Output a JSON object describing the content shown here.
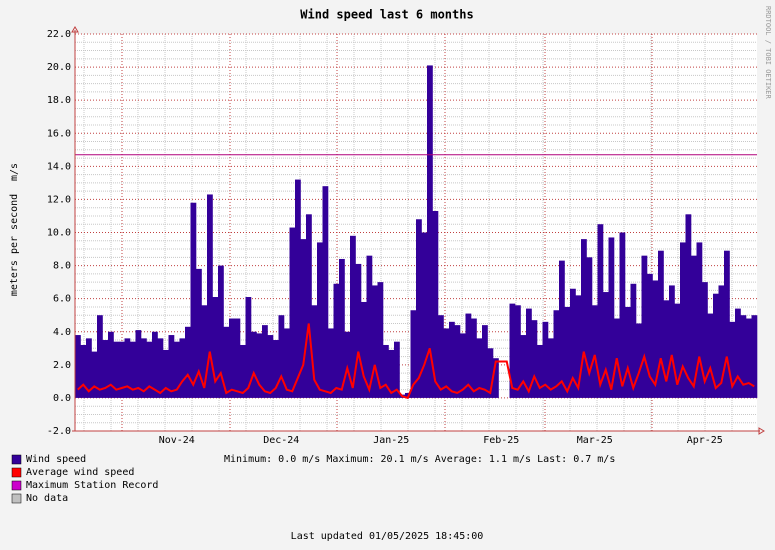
{
  "chart_data": {
    "type": "bar",
    "title": "Wind speed last 6 months",
    "y_label": "meters per second",
    "y_unit": "m/s",
    "watermark": "RRDTOOL / TOBI OETIKER",
    "stats": "Minimum: 0.0 m/s  Maximum: 20.1 m/s  Average: 1.1 m/s  Last: 0.7 m/s",
    "footer": "Last updated 01/05/2025 18:45:00",
    "ylim": [
      -2,
      22
    ],
    "yticks": [
      {
        "value": -2,
        "label": "-2.0"
      },
      {
        "value": 0,
        "label": "0.0"
      },
      {
        "value": 2,
        "label": "2.0"
      },
      {
        "value": 4,
        "label": "4.0"
      },
      {
        "value": 6,
        "label": "6.0"
      },
      {
        "value": 8,
        "label": "8.0"
      },
      {
        "value": 10,
        "label": "10.0"
      },
      {
        "value": 12,
        "label": "12.0"
      },
      {
        "value": 14,
        "label": "14.0"
      },
      {
        "value": 16,
        "label": "16.0"
      },
      {
        "value": 18,
        "label": "18.0"
      },
      {
        "value": 20,
        "label": "20.0"
      },
      {
        "value": 22,
        "label": "22.0"
      }
    ],
    "grid": true,
    "categories": [
      null,
      null,
      null,
      null,
      null,
      null,
      null,
      null,
      null,
      null,
      null,
      null,
      null,
      null,
      null,
      null,
      null,
      null,
      "Nov-24",
      null,
      null,
      null,
      null,
      null,
      null,
      null,
      null,
      null,
      null,
      null,
      null,
      null,
      null,
      null,
      null,
      null,
      null,
      "Dec-24",
      null,
      null,
      null,
      null,
      null,
      null,
      null,
      null,
      null,
      null,
      null,
      null,
      null,
      null,
      null,
      null,
      null,
      null,
      null,
      "Jan-25",
      null,
      null,
      null,
      null,
      null,
      null,
      null,
      null,
      null,
      null,
      null,
      null,
      null,
      null,
      null,
      null,
      null,
      null,
      null,
      "Feb-25",
      null,
      null,
      null,
      null,
      null,
      null,
      null,
      null,
      null,
      null,
      null,
      null,
      null,
      null,
      null,
      null,
      "Mar-25",
      null,
      null,
      null,
      null,
      null,
      null,
      null,
      null,
      null,
      null,
      null,
      null,
      null,
      null,
      null,
      null,
      null,
      null,
      null,
      "Apr-25",
      null,
      null,
      null,
      null,
      null,
      null,
      null,
      null,
      null
    ],
    "series": [
      {
        "name": "Wind speed",
        "color": "#330099",
        "kind": "bar",
        "values": [
          3.8,
          3.2,
          3.6,
          2.8,
          5.0,
          3.5,
          4.0,
          3.4,
          3.4,
          3.6,
          3.4,
          4.1,
          3.6,
          3.4,
          4.0,
          3.6,
          2.9,
          3.8,
          3.4,
          3.6,
          4.3,
          11.8,
          7.8,
          5.6,
          12.3,
          6.1,
          8.0,
          4.3,
          4.8,
          4.8,
          3.2,
          6.1,
          4.0,
          3.9,
          4.4,
          3.8,
          3.5,
          5.0,
          4.2,
          10.3,
          13.2,
          9.6,
          11.1,
          5.6,
          9.4,
          12.8,
          4.2,
          6.9,
          8.4,
          4.0,
          9.8,
          8.1,
          5.8,
          8.6,
          6.8,
          7.0,
          3.2,
          2.9,
          3.4,
          0.2,
          0.3,
          5.3,
          10.8,
          10.0,
          20.1,
          11.3,
          5.0,
          4.2,
          4.6,
          4.4,
          3.9,
          5.1,
          4.8,
          3.6,
          4.4,
          3.0,
          2.4,
          null,
          null,
          5.7,
          5.6,
          3.8,
          5.4,
          4.7,
          3.2,
          4.6,
          3.6,
          5.3,
          8.3,
          5.5,
          6.6,
          6.2,
          9.6,
          8.5,
          5.6,
          10.5,
          6.4,
          9.7,
          4.8,
          10.0,
          5.5,
          6.9,
          4.5,
          8.6,
          7.5,
          7.1,
          8.9,
          5.9,
          6.8,
          5.7,
          9.4,
          11.1,
          8.6,
          9.4,
          7.0,
          5.1,
          6.3,
          6.8,
          8.9,
          4.6,
          5.4,
          5.0,
          4.8,
          5.0
        ]
      },
      {
        "name": "Average wind speed",
        "color": "#ff0000",
        "kind": "line",
        "values": [
          0.5,
          0.8,
          0.4,
          0.7,
          0.5,
          0.6,
          0.8,
          0.5,
          0.6,
          0.7,
          0.5,
          0.6,
          0.4,
          0.7,
          0.5,
          0.3,
          0.6,
          0.4,
          0.5,
          1.0,
          1.4,
          0.8,
          1.6,
          0.6,
          2.8,
          1.0,
          1.5,
          0.3,
          0.5,
          0.4,
          0.3,
          0.6,
          1.5,
          0.8,
          0.4,
          0.3,
          0.6,
          1.3,
          0.5,
          0.4,
          1.2,
          2.0,
          4.5,
          1.1,
          0.5,
          0.4,
          0.3,
          0.6,
          0.5,
          1.8,
          0.6,
          2.8,
          1.3,
          0.5,
          2.0,
          0.6,
          0.8,
          0.3,
          0.5,
          0.1,
          0.0,
          0.8,
          1.2,
          2.0,
          3.0,
          1.0,
          0.5,
          0.7,
          0.4,
          0.3,
          0.5,
          0.8,
          0.4,
          0.6,
          0.5,
          0.3,
          2.2,
          2.2,
          2.2,
          0.6,
          0.5,
          1.0,
          0.4,
          1.3,
          0.6,
          0.8,
          0.5,
          0.7,
          1.0,
          0.4,
          1.2,
          0.6,
          2.8,
          1.5,
          2.6,
          0.8,
          1.7,
          0.5,
          2.4,
          0.7,
          1.8,
          0.6,
          1.5,
          2.5,
          1.3,
          0.8,
          2.4,
          1.0,
          2.6,
          0.8,
          1.9,
          1.2,
          0.7,
          2.5,
          1.0,
          1.8,
          0.6,
          0.9,
          2.5,
          0.7,
          1.3,
          0.8,
          0.9,
          0.7
        ]
      }
    ],
    "reference_lines": [
      {
        "name": "Maximum Station Record",
        "color": "#b0007a",
        "value": 14.7
      }
    ],
    "no_data": {
      "name": "No data",
      "color": "#c0c0c0"
    }
  }
}
